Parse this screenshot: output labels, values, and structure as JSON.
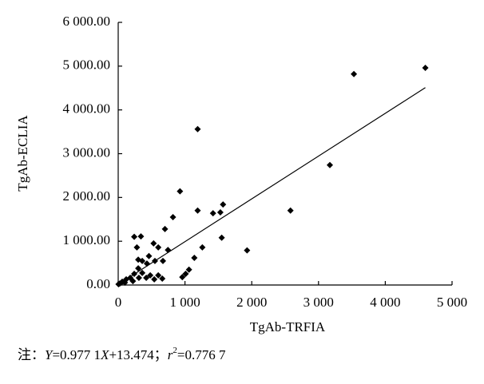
{
  "chart_data": {
    "type": "scatter",
    "x_label": "TgAb-TRFIA",
    "y_label": "TgAb-ECLIA",
    "note": [
      "注：",
      "Y",
      "=0.977 1",
      "X",
      "+13.474；",
      "r",
      "2",
      "=0.776 7"
    ],
    "color": "#000000",
    "trendline": {
      "slope": 0.9771,
      "intercept": 13.474
    },
    "xlim": [
      0,
      5000
    ],
    "xticks": [
      0,
      {
        "value": 1000,
        "label": "1 000"
      },
      {
        "value": 2000,
        "label": "2 000"
      },
      {
        "value": 3000,
        "label": "3 000"
      },
      {
        "value": 4000,
        "label": "4 000"
      },
      {
        "value": 5000,
        "label": "5 000"
      }
    ],
    "ylim": [
      0,
      6000
    ],
    "yticks": [
      {
        "value": 0,
        "label": "0.00"
      },
      {
        "value": 1000,
        "label": "1 000.00"
      },
      {
        "value": 2000,
        "label": "2 000.00"
      },
      {
        "value": 3000,
        "label": "3 000.00"
      },
      {
        "value": 4000,
        "label": "4 000.00"
      },
      {
        "value": 5000,
        "label": "5 000.00"
      },
      {
        "value": 6000,
        "label": "6 000.00"
      }
    ],
    "x": [
      4600,
      3530,
      3170,
      2580,
      1930,
      1550,
      1570,
      1530,
      1420,
      1190,
      1190,
      925,
      1260,
      1140,
      1060,
      1010,
      960,
      820,
      700,
      745,
      670,
      600,
      530,
      550,
      460,
      430,
      340,
      240,
      280,
      300,
      360,
      300,
      240,
      180,
      120,
      60,
      24,
      5,
      420,
      480,
      540,
      600,
      660,
      360,
      310,
      220,
      100
    ],
    "y": [
      4960,
      4820,
      2740,
      1700,
      790,
      1080,
      1840,
      1660,
      1640,
      3560,
      1700,
      2140,
      860,
      620,
      350,
      255,
      180,
      1550,
      1280,
      800,
      550,
      860,
      950,
      550,
      660,
      490,
      1110,
      1100,
      860,
      580,
      550,
      380,
      255,
      165,
      130,
      75,
      35,
      18,
      165,
      220,
      130,
      220,
      145,
      275,
      165,
      90,
      55
    ]
  }
}
